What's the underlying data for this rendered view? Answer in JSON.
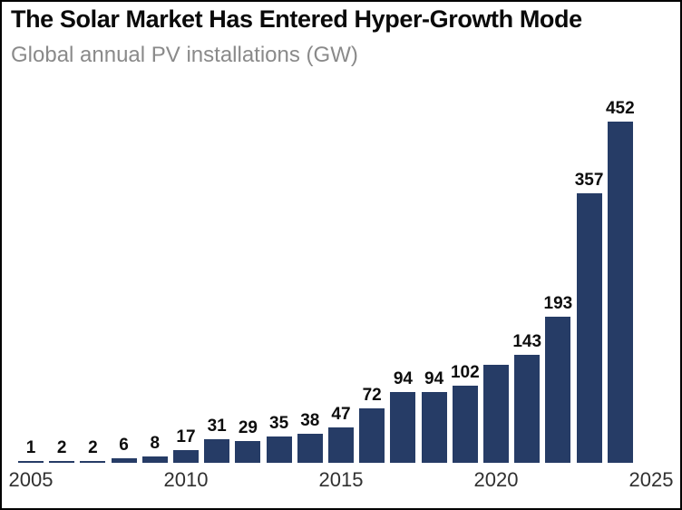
{
  "chart_data": {
    "type": "bar",
    "title": "The Solar Market Has Entered Hyper-Growth Mode",
    "subtitle": "Global annual PV installations (GW)",
    "xlabel": "",
    "ylabel": "",
    "x": [
      2005,
      2006,
      2007,
      2008,
      2009,
      2010,
      2011,
      2012,
      2013,
      2014,
      2015,
      2016,
      2017,
      2018,
      2019,
      2020,
      2021,
      2022,
      2023,
      2024
    ],
    "values": [
      1,
      2,
      2,
      6,
      8,
      17,
      31,
      29,
      35,
      38,
      47,
      72,
      94,
      94,
      102,
      130,
      143,
      193,
      357,
      452
    ],
    "bar_labels": [
      "1",
      "2",
      "2",
      "6",
      "8",
      "17",
      "31",
      "29",
      "35",
      "38",
      "47",
      "72",
      "94",
      "94",
      "102",
      "",
      "143",
      "193",
      "357",
      "452"
    ],
    "xtick_labels": [
      "2005",
      "2010",
      "2015",
      "2020",
      "2025"
    ],
    "xtick_years": [
      2005,
      2010,
      2015,
      2020,
      2025
    ],
    "ylim": [
      0,
      452
    ],
    "grid": false,
    "legend": false,
    "y_axis_shown": false,
    "bar_color": "#263c66",
    "bar_label_color": "#0d0d0d",
    "tick_label_color": "#303030",
    "title_color": "#0a0a0a",
    "subtitle_color": "#8a8a8a"
  }
}
